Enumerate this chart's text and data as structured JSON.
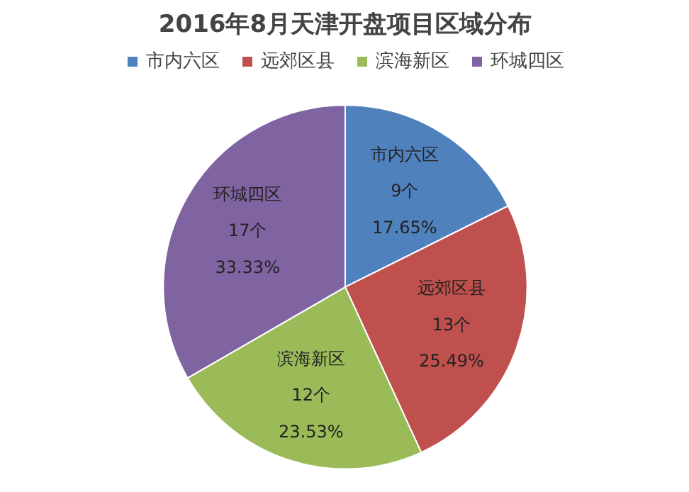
{
  "chart_data": {
    "type": "pie",
    "title": "2016年8月天津开盘项目区域分布",
    "categories": [
      "市内六区",
      "远郊区县",
      "滨海新区",
      "环城四区"
    ],
    "values": [
      9,
      13,
      12,
      17
    ],
    "value_labels": [
      "9个\n17.65%",
      "13个\n25.49%",
      "12个\n23.53%",
      "17个\n33.33%"
    ],
    "colors": [
      "#4f81bd",
      "#c0504d",
      "#9bbb59",
      "#8064a2"
    ],
    "legend": "top"
  }
}
